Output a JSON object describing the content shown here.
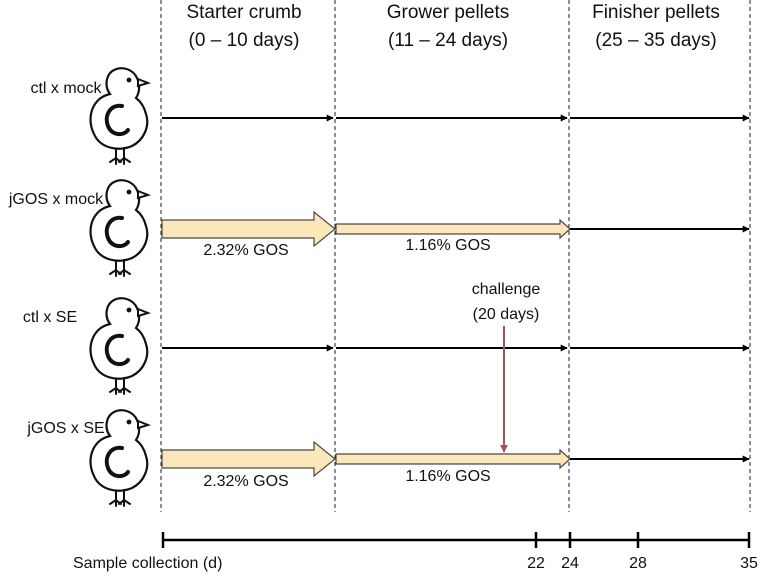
{
  "phases": [
    {
      "name": "Starter crumb",
      "range": "(0 – 10 days)"
    },
    {
      "name": "Grower pellets",
      "range": "(11 – 24 days)"
    },
    {
      "name": "Finisher pellets",
      "range": "(25 – 35 days)"
    }
  ],
  "groups": [
    {
      "label": "ctl x mock",
      "supplemented": false
    },
    {
      "label": "jGOS x mock",
      "supplemented": true,
      "starter_dose": "2.32% GOS",
      "grower_dose": "1.16% GOS"
    },
    {
      "label": "ctl x SE",
      "supplemented": false
    },
    {
      "label": "jGOS x SE",
      "supplemented": true,
      "starter_dose": "2.32% GOS",
      "grower_dose": "1.16% GOS"
    }
  ],
  "challenge": {
    "line1": "challenge",
    "line2": "(20 days)",
    "day": 20
  },
  "sampling": {
    "label": "Sample collection (d)",
    "days": [
      "22",
      "24",
      "28",
      "35"
    ]
  },
  "colors": {
    "supplement_fill": "#fbe7b9",
    "supplement_stroke": "#4a4a4a",
    "challenge_arrow": "#a25555",
    "chick_outline": "#111111"
  },
  "icons": {
    "chick": "chick-icon"
  }
}
